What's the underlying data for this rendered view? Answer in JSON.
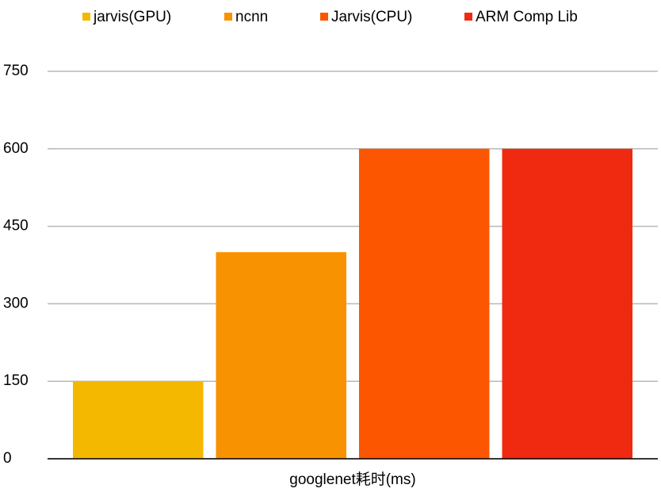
{
  "chart_data": {
    "type": "bar",
    "categories": [
      "googlenet耗时(ms)"
    ],
    "series": [
      {
        "name": "jarvis(GPU)",
        "color": "#f5b800",
        "values": [
          150
        ]
      },
      {
        "name": "ncnn",
        "color": "#f99200",
        "values": [
          400
        ]
      },
      {
        "name": "Jarvis(CPU)",
        "color": "#fc5600",
        "values": [
          600
        ]
      },
      {
        "name": "ARM Comp Lib",
        "color": "#ef2a10",
        "values": [
          600
        ]
      }
    ],
    "ylim": [
      0,
      750
    ],
    "yticks": [
      0,
      150,
      300,
      450,
      600,
      750
    ],
    "grid": true,
    "legend": "top"
  }
}
